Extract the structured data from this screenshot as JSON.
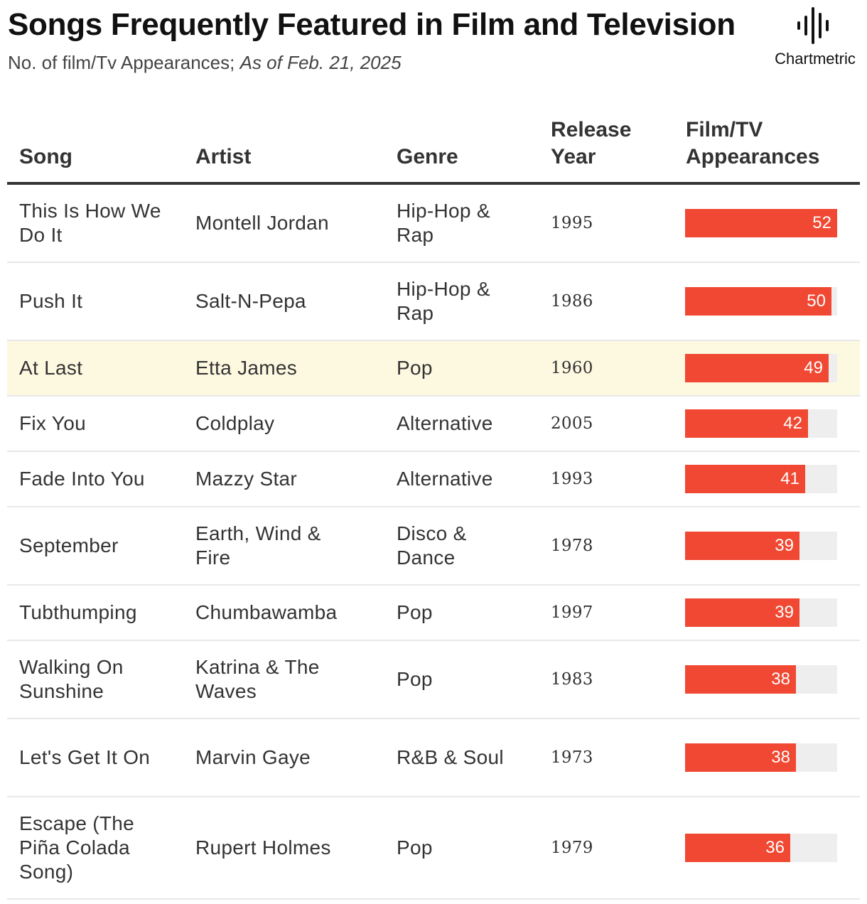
{
  "title": "Songs Frequently Featured in Film and Television",
  "subtitle": "No. of film/Tv Appearances;",
  "subtitle_date": "As of Feb. 21, 2025",
  "logo_text": "Chartmetric",
  "colors": {
    "bar": "#f04832",
    "bar_track": "#eeeeee",
    "highlight": "#fdf9e1"
  },
  "chart_data": {
    "type": "table",
    "columns": [
      "Song",
      "Artist",
      "Genre",
      "Release Year",
      "Film/TV Appearances"
    ],
    "highlighted_row": "At Last",
    "bar_max": 52,
    "rows": [
      {
        "song": "This Is How We Do It",
        "artist": "Montell Jordan",
        "genre": "Hip-Hop & Rap",
        "year": "1995",
        "appearances": 52
      },
      {
        "song": "Push It",
        "artist": "Salt-N-Pepa",
        "genre": "Hip-Hop & Rap",
        "year": "1986",
        "appearances": 50
      },
      {
        "song": "At Last",
        "artist": "Etta James",
        "genre": "Pop",
        "year": "1960",
        "appearances": 49
      },
      {
        "song": "Fix You",
        "artist": "Coldplay",
        "genre": "Alternative",
        "year": "2005",
        "appearances": 42
      },
      {
        "song": "Fade Into You",
        "artist": "Mazzy Star",
        "genre": "Alternative",
        "year": "1993",
        "appearances": 41
      },
      {
        "song": "September",
        "artist": "Earth, Wind & Fire",
        "genre": "Disco & Dance",
        "year": "1978",
        "appearances": 39
      },
      {
        "song": "Tubthumping",
        "artist": "Chumbawamba",
        "genre": "Pop",
        "year": "1997",
        "appearances": 39
      },
      {
        "song": "Walking On Sunshine",
        "artist": "Katrina & The Waves",
        "genre": "Pop",
        "year": "1983",
        "appearances": 38
      },
      {
        "song": "Let's Get It On",
        "artist": "Marvin Gaye",
        "genre": "R&B & Soul",
        "year": "1973",
        "appearances": 38
      },
      {
        "song": "Escape (The Piña Colada Song)",
        "artist": "Rupert Holmes",
        "genre": "Pop",
        "year": "1979",
        "appearances": 36
      }
    ]
  }
}
